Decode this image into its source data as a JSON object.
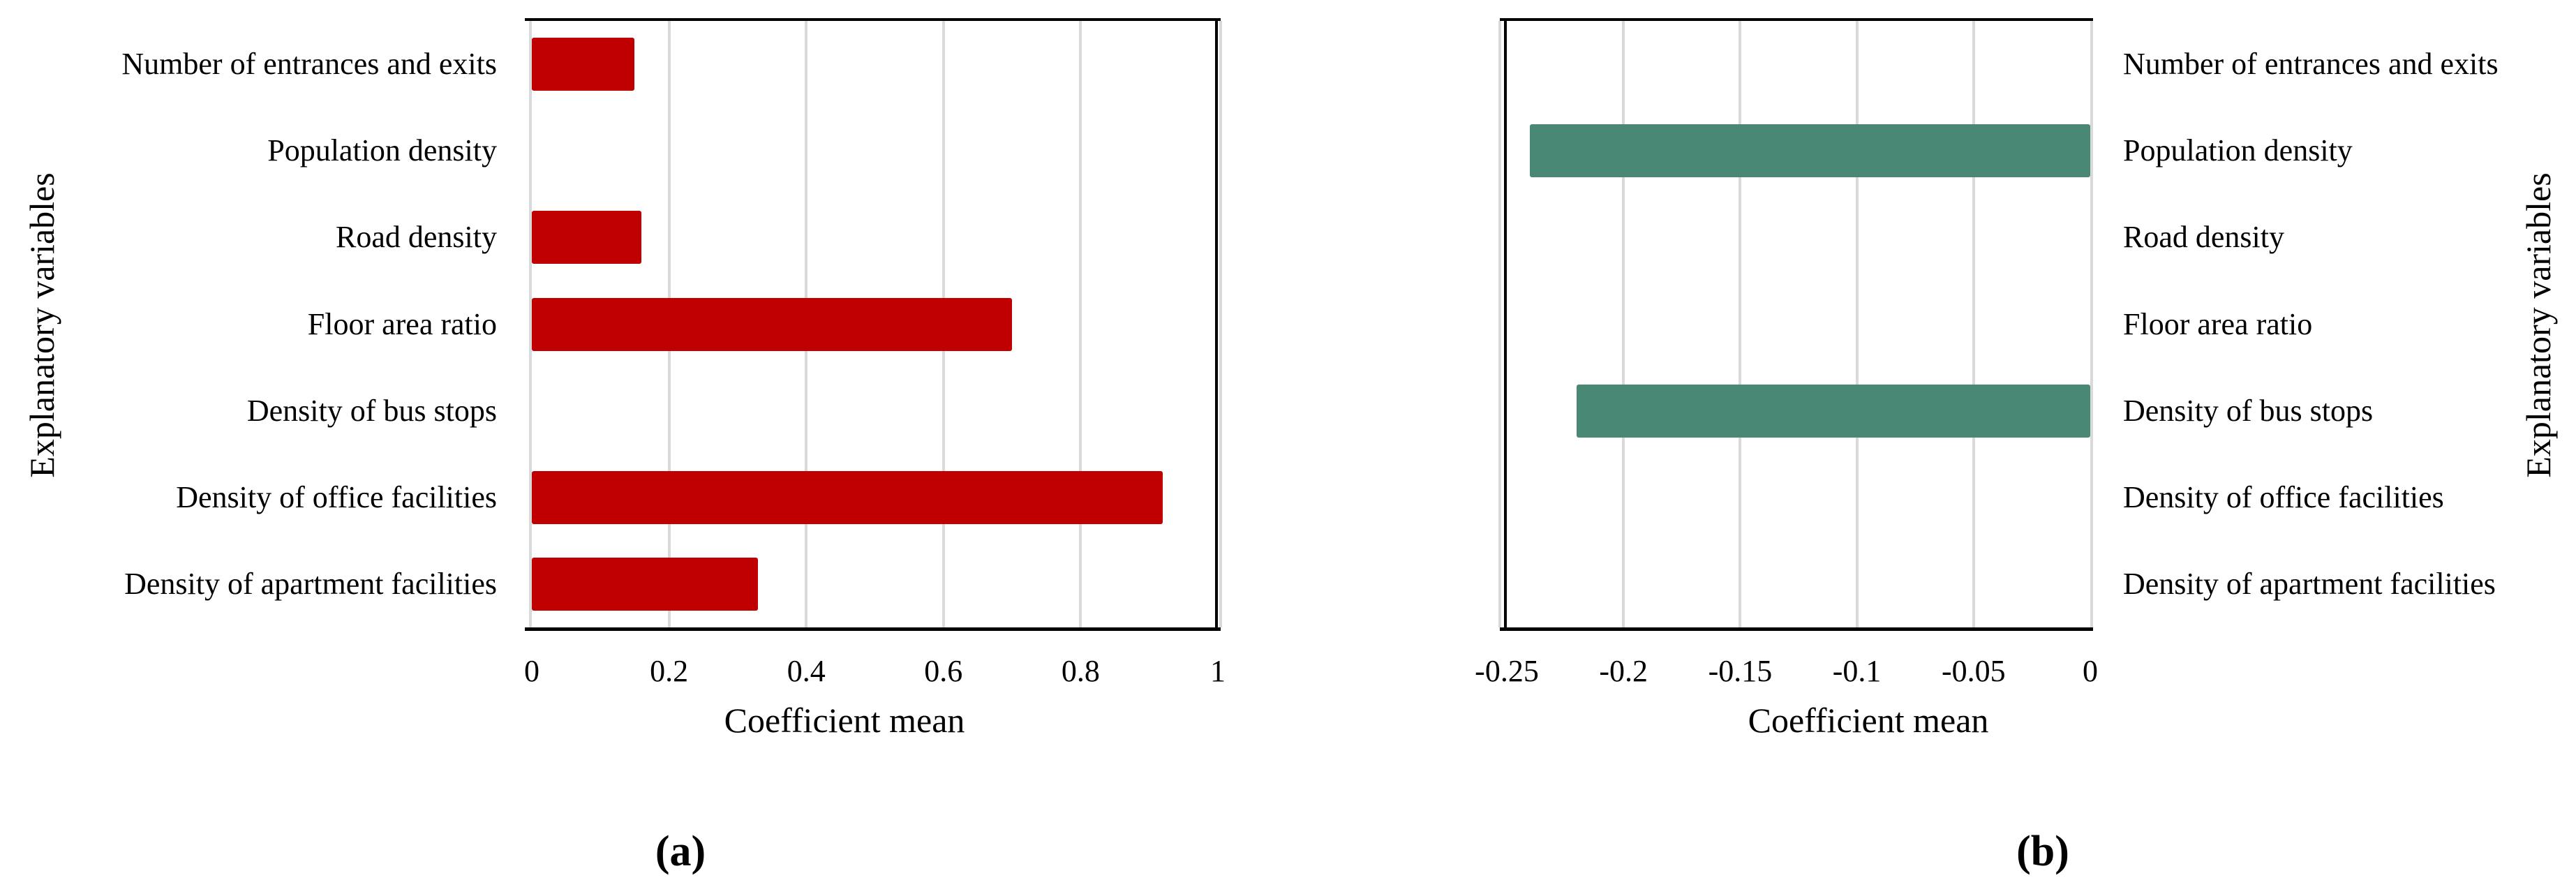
{
  "figure": {
    "background": "#ffffff",
    "description": "Two horizontal bar charts of coefficient means for explanatory variables",
    "captions": {
      "a": "(a)",
      "b": "(b)"
    }
  },
  "colors": {
    "positive_bar": "#c00000",
    "negative_bar": "#488874",
    "gridline": "#d9d9d9",
    "axis_line": "#000000",
    "text": "#000000"
  },
  "chart_data": [
    {
      "id": "a",
      "type": "bar",
      "orientation": "horizontal",
      "caption": "(a)",
      "xlabel": "Coefficient mean",
      "ylabel": "Explanatory variables",
      "categories": [
        "Number of entrances and exits",
        "Population density",
        "Road density",
        "Floor area ratio",
        "Density of bus stops",
        "Density of office facilities",
        "Density of apartment facilities"
      ],
      "values": [
        0.15,
        0,
        0.16,
        0.7,
        0,
        0.92,
        0.33
      ],
      "xlim": [
        0,
        1
      ],
      "xticks": [
        0,
        0.2,
        0.4,
        0.6,
        0.8,
        1
      ],
      "xtick_labels": [
        "0",
        "0.2",
        "0.4",
        "0.6",
        "0.8",
        "1"
      ],
      "bar_color": "#c00000",
      "grid": true,
      "category_labels_side": "left",
      "legend": "none"
    },
    {
      "id": "b",
      "type": "bar",
      "orientation": "horizontal",
      "caption": "(b)",
      "xlabel": "Coefficient mean",
      "ylabel": "Explanatory variables",
      "categories": [
        "Number of entrances and exits",
        "Population density",
        "Road density",
        "Floor area ratio",
        "Density of bus stops",
        "Density of office facilities",
        "Density of apartment facilities"
      ],
      "values": [
        0,
        -0.24,
        0,
        0,
        -0.22,
        0,
        0
      ],
      "xlim": [
        -0.25,
        0
      ],
      "xticks": [
        -0.25,
        -0.2,
        -0.15,
        -0.1,
        -0.05,
        0
      ],
      "xtick_labels": [
        "-0.25",
        "-0.2",
        "-0.15",
        "-0.1",
        "-0.05",
        "0"
      ],
      "bar_color": "#488874",
      "grid": true,
      "category_labels_side": "right",
      "legend": "none"
    }
  ]
}
